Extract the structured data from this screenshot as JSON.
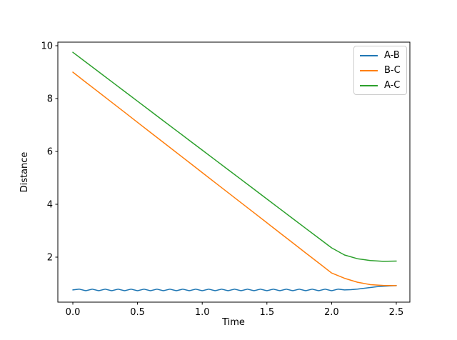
{
  "chart_data": {
    "type": "line",
    "title": "",
    "xlabel": "Time",
    "ylabel": "Distance",
    "xlim": [
      -0.116,
      2.605
    ],
    "ylim": [
      0.297,
      10.135
    ],
    "grid": false,
    "legend_position": "upper right",
    "x_ticks": [
      0.0,
      0.5,
      1.0,
      1.5,
      2.0,
      2.5
    ],
    "x_tick_labels": [
      "0.0",
      "0.5",
      "1.0",
      "1.5",
      "2.0",
      "2.5"
    ],
    "y_ticks": [
      2,
      4,
      6,
      8,
      10
    ],
    "y_tick_labels": [
      "2",
      "4",
      "6",
      "8",
      "10"
    ],
    "axis_color": "#000000",
    "background_color": "#ffffff",
    "series": [
      {
        "name": "A-B",
        "color": "#1f77b4",
        "x": [
          0.0,
          0.05,
          0.1,
          0.15,
          0.2,
          0.25,
          0.3,
          0.35,
          0.4,
          0.45,
          0.5,
          0.55,
          0.6,
          0.65,
          0.7,
          0.75,
          0.8,
          0.85,
          0.9,
          0.95,
          1.0,
          1.05,
          1.1,
          1.15,
          1.2,
          1.25,
          1.3,
          1.35,
          1.4,
          1.45,
          1.5,
          1.55,
          1.6,
          1.65,
          1.7,
          1.75,
          1.8,
          1.85,
          1.9,
          1.95,
          2.0,
          2.05,
          2.1,
          2.15,
          2.2,
          2.25,
          2.3,
          2.35,
          2.4,
          2.45,
          2.5
        ],
        "y": [
          0.76,
          0.79,
          0.73,
          0.79,
          0.73,
          0.79,
          0.73,
          0.79,
          0.73,
          0.79,
          0.73,
          0.79,
          0.73,
          0.79,
          0.73,
          0.79,
          0.73,
          0.79,
          0.73,
          0.79,
          0.73,
          0.79,
          0.73,
          0.79,
          0.73,
          0.79,
          0.73,
          0.79,
          0.73,
          0.79,
          0.73,
          0.79,
          0.73,
          0.79,
          0.73,
          0.79,
          0.73,
          0.79,
          0.73,
          0.79,
          0.73,
          0.79,
          0.76,
          0.77,
          0.79,
          0.82,
          0.85,
          0.88,
          0.9,
          0.91,
          0.92
        ]
      },
      {
        "name": "B-C",
        "color": "#ff7f0e",
        "x": [
          0.0,
          0.1,
          0.2,
          0.3,
          0.4,
          0.5,
          0.6,
          0.7,
          0.8,
          0.9,
          1.0,
          1.1,
          1.2,
          1.3,
          1.4,
          1.5,
          1.6,
          1.7,
          1.8,
          1.9,
          2.0,
          2.1,
          2.2,
          2.3,
          2.4,
          2.5
        ],
        "y": [
          9.0,
          8.62,
          8.24,
          7.86,
          7.48,
          7.1,
          6.72,
          6.34,
          5.96,
          5.58,
          5.2,
          4.82,
          4.44,
          4.06,
          3.68,
          3.3,
          2.92,
          2.54,
          2.16,
          1.78,
          1.4,
          1.2,
          1.05,
          0.96,
          0.93,
          0.92
        ]
      },
      {
        "name": "A-C",
        "color": "#2ca02c",
        "x": [
          0.0,
          0.1,
          0.2,
          0.3,
          0.4,
          0.5,
          0.6,
          0.7,
          0.8,
          0.9,
          1.0,
          1.1,
          1.2,
          1.3,
          1.4,
          1.5,
          1.6,
          1.7,
          1.8,
          1.9,
          2.0,
          2.1,
          2.2,
          2.3,
          2.4,
          2.5
        ],
        "y": [
          9.75,
          9.38,
          9.01,
          8.64,
          8.27,
          7.9,
          7.53,
          7.16,
          6.79,
          6.42,
          6.05,
          5.68,
          5.31,
          4.94,
          4.57,
          4.2,
          3.83,
          3.46,
          3.09,
          2.72,
          2.35,
          2.08,
          1.94,
          1.87,
          1.84,
          1.85
        ]
      }
    ]
  }
}
